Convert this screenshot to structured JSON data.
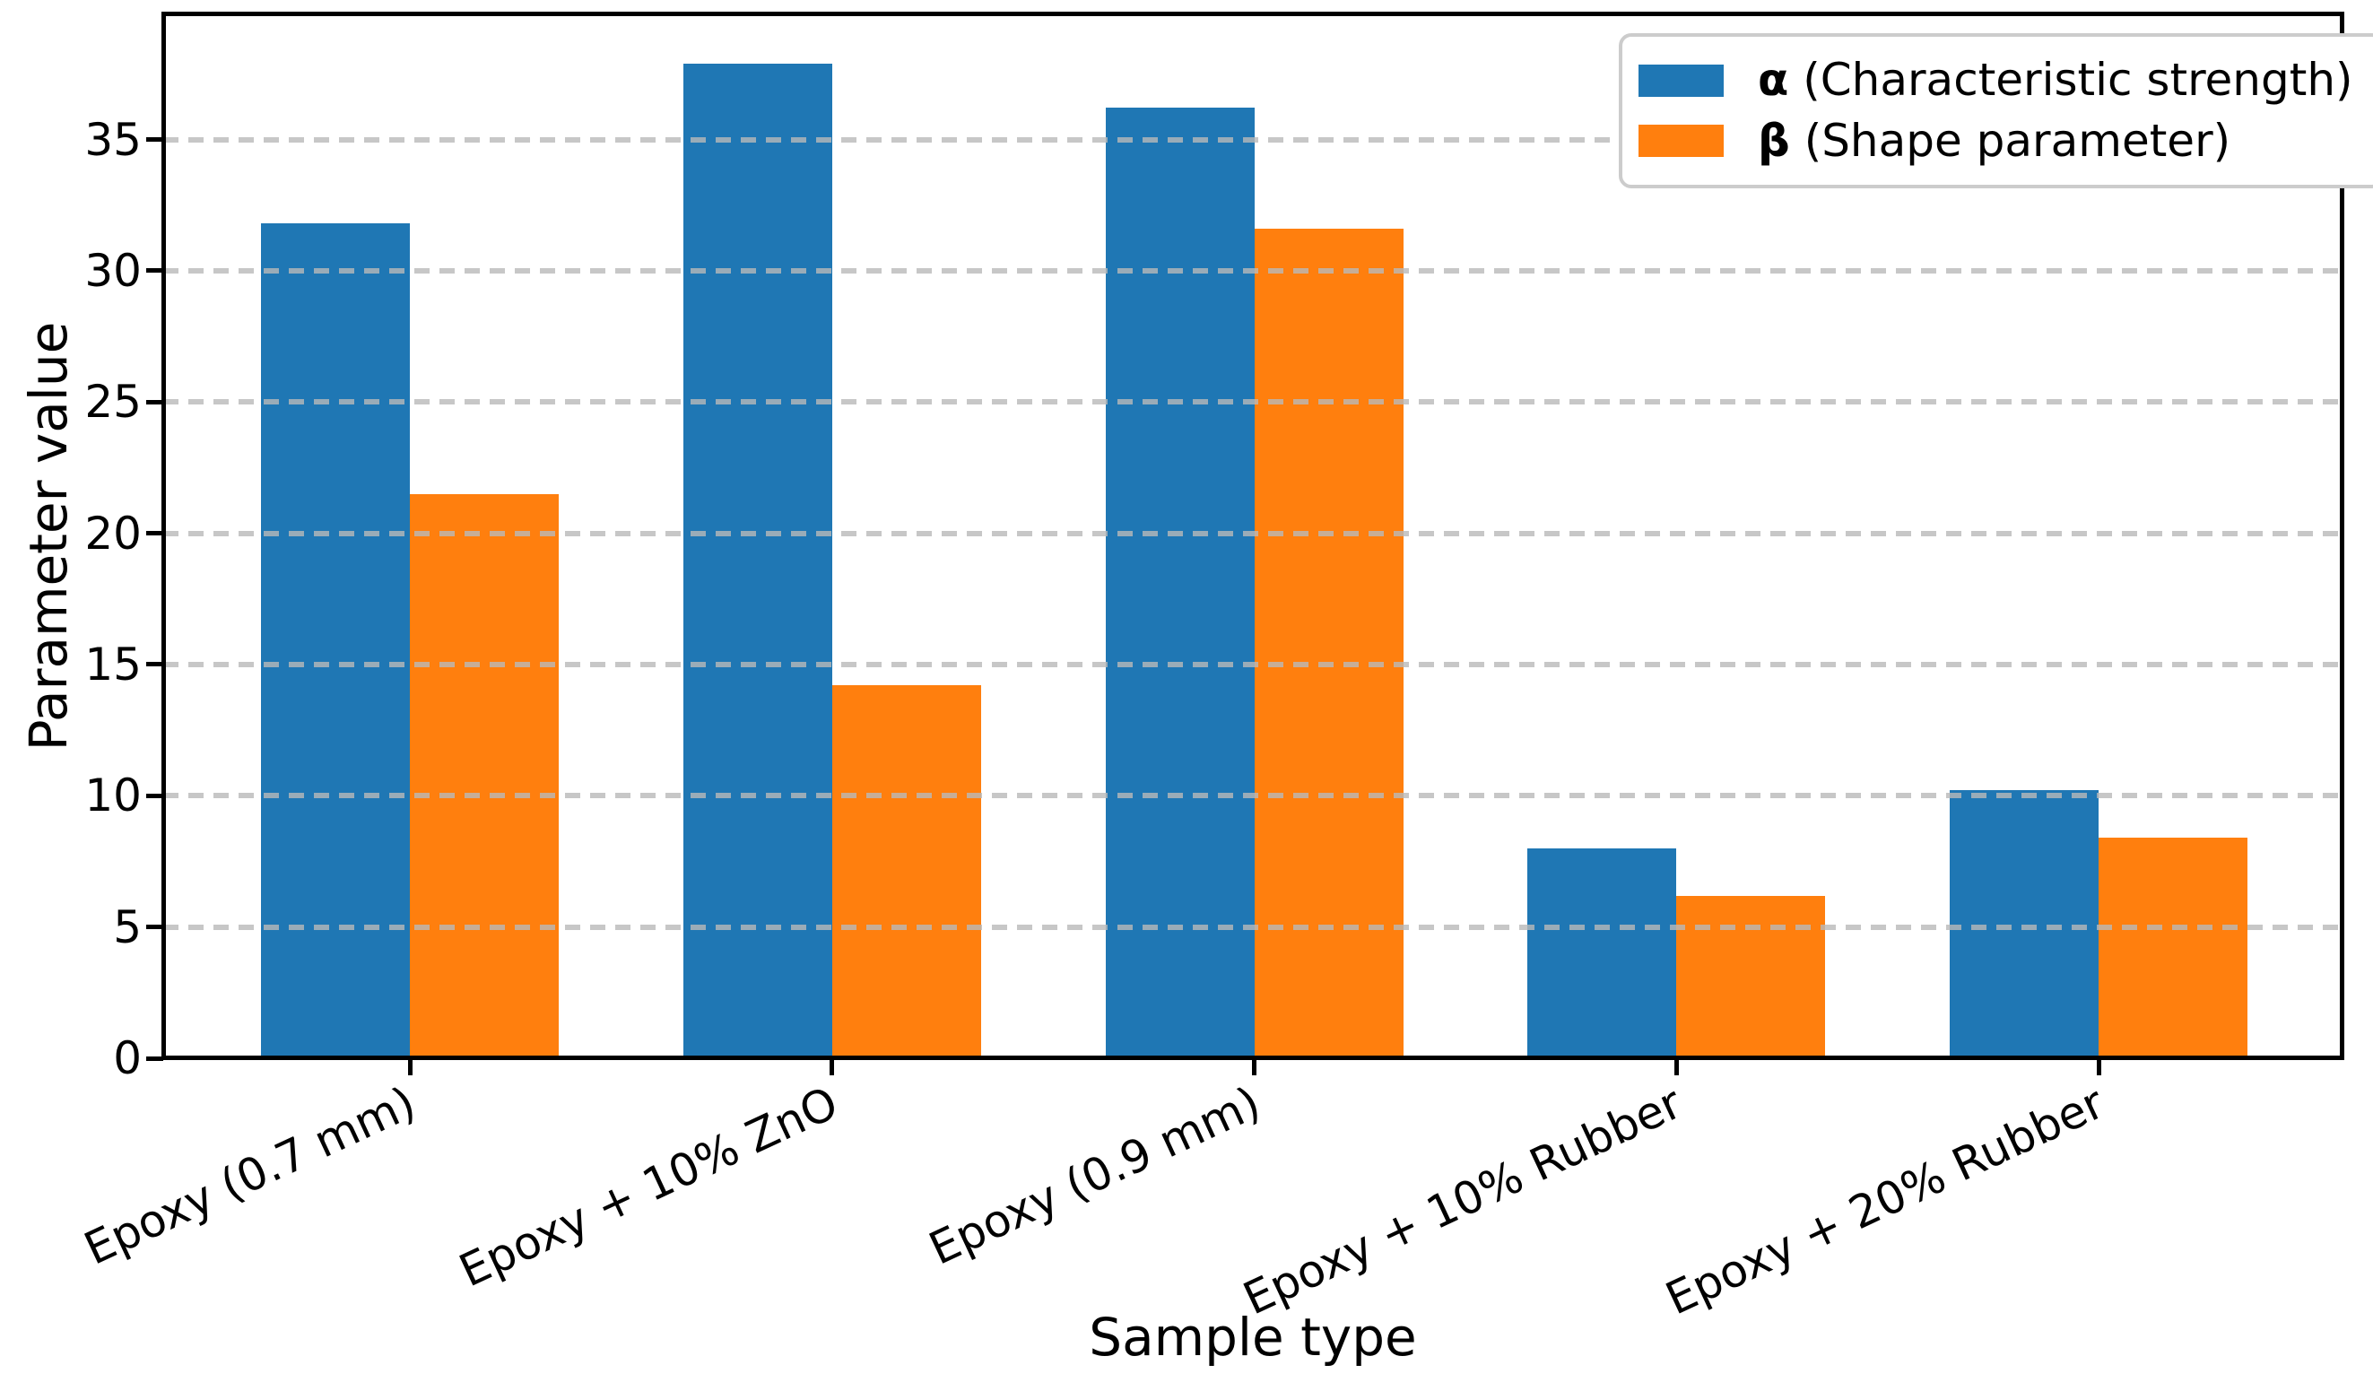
{
  "figure": {
    "background": "#ffffff"
  },
  "legend": {
    "position": "upper right",
    "items": [
      {
        "symbol": "α",
        "text": "(Characteristic strength)",
        "color": "#1f77b4"
      },
      {
        "symbol": "β",
        "text": "(Shape parameter)",
        "color": "#ff7f0e"
      }
    ]
  },
  "chart_data": {
    "type": "bar",
    "title": "",
    "xlabel": "Sample type",
    "ylabel": "Parameter value",
    "categories": [
      "Epoxy (0.7 mm)",
      "Epoxy + 10% ZnO",
      "Epoxy (0.9 mm)",
      "Epoxy + 10% Rubber",
      "Epoxy + 20% Rubber"
    ],
    "series": [
      {
        "name": "α (Characteristic strength)",
        "color": "#1f77b4",
        "values": [
          31.8,
          37.9,
          36.2,
          8.0,
          10.2
        ]
      },
      {
        "name": "β (Shape parameter)",
        "color": "#ff7f0e",
        "values": [
          21.5,
          14.2,
          31.6,
          6.2,
          8.4
        ]
      }
    ],
    "ylim": [
      0,
      39.8
    ],
    "yticks": [
      0,
      5,
      10,
      15,
      20,
      25,
      30,
      35
    ],
    "grid": {
      "axis": "y",
      "style": "dashed",
      "color": "#c8c8c8",
      "on_top_of_bars": true
    },
    "x_tick_rotation_deg": 25,
    "legend_position": "upper right",
    "colors": {
      "alpha_series": "#1f77b4",
      "beta_series": "#ff7f0e",
      "axis": "#000000",
      "grid": "#c8c8c8",
      "legend_border": "#cccccc"
    }
  }
}
